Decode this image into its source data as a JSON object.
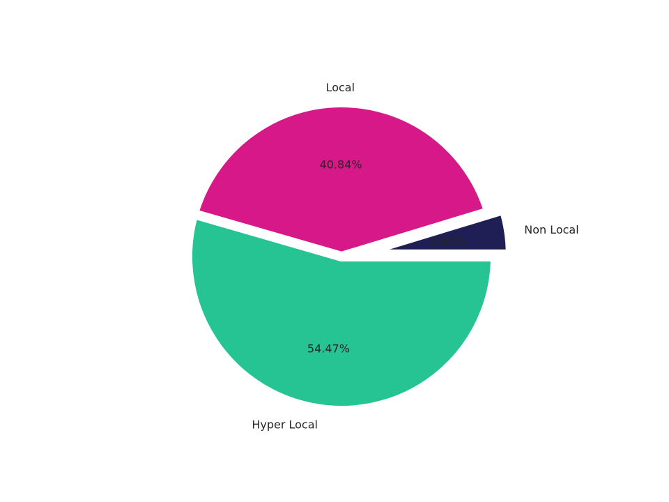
{
  "chart_data": {
    "type": "pie",
    "title": "",
    "slices": [
      {
        "label": "Non Local",
        "value": 4.69,
        "pct_label": "4.69%",
        "color": "#1f1e55",
        "exploded": true
      },
      {
        "label": "Local",
        "value": 40.84,
        "pct_label": "40.84%",
        "color": "#d71888",
        "exploded": false
      },
      {
        "label": "Hyper Local",
        "value": 54.47,
        "pct_label": "54.47%",
        "color": "#25c492",
        "exploded": false
      }
    ],
    "start_angle_deg": 0,
    "direction": "counterclockwise",
    "legend": "none"
  }
}
